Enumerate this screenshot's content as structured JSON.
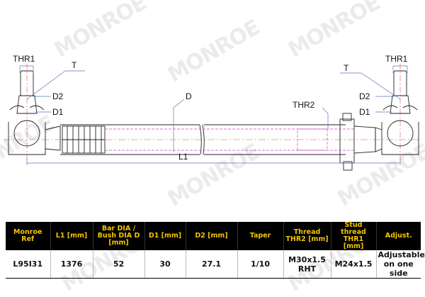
{
  "watermark": "MONROE",
  "drawing": {
    "labels": {
      "thr1_left": "THR1",
      "thr1_right": "THR1",
      "t_left": "T",
      "t_right": "T",
      "d2_left": "D2",
      "d2_right": "D2",
      "d1_left": "D1",
      "d1_right": "D1",
      "d": "D",
      "thr2": "THR2",
      "l1": "L1"
    },
    "colors": {
      "line": "#222222",
      "dimension": "#5a78b8",
      "hidden": "#d040c0",
      "axis": "#e05050"
    }
  },
  "table": {
    "headers": [
      "Monroe Ref",
      "L1 [mm]",
      "Bar DIA / Bush DIA D [mm]",
      "D1 [mm]",
      "D2 [mm]",
      "Taper",
      "Thread THR2 [mm]",
      "Stud thread THR1 [mm]",
      "Adjust."
    ],
    "row": [
      "L95I31",
      "1376",
      "52",
      "30",
      "27.1",
      "1/10",
      "M30x1.5 RHT",
      "M24x1.5",
      "Adjustable on one side"
    ],
    "colors": {
      "header_bg": "#000000",
      "header_text": "#f2c500"
    }
  }
}
